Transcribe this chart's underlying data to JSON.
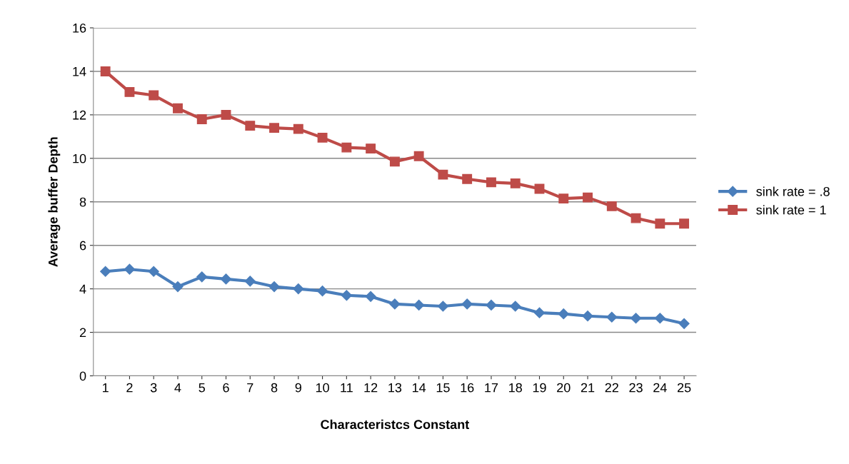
{
  "chart_data": {
    "type": "line",
    "xlabel": "Characteristcs Constant",
    "ylabel": "Average buffer Depth",
    "categories": [
      "1",
      "2",
      "3",
      "4",
      "5",
      "6",
      "7",
      "8",
      "9",
      "10",
      "11",
      "12",
      "13",
      "14",
      "15",
      "16",
      "17",
      "18",
      "19",
      "20",
      "21",
      "22",
      "23",
      "24",
      "25"
    ],
    "series": [
      {
        "name": "sink rate = .8",
        "color": "#4a7ebb",
        "marker": "diamond",
        "values": [
          4.8,
          4.9,
          4.8,
          4.1,
          4.55,
          4.45,
          4.35,
          4.1,
          4.0,
          3.9,
          3.7,
          3.65,
          3.3,
          3.25,
          3.2,
          3.3,
          3.25,
          3.2,
          2.9,
          2.85,
          2.75,
          2.7,
          2.65,
          2.65,
          2.4
        ]
      },
      {
        "name": "sink rate = 1",
        "color": "#be4b48",
        "marker": "square",
        "values": [
          14.0,
          13.05,
          12.9,
          12.3,
          11.8,
          12.0,
          11.5,
          11.4,
          11.35,
          10.95,
          10.5,
          10.45,
          9.85,
          10.1,
          9.25,
          9.05,
          8.9,
          8.85,
          8.6,
          8.15,
          8.2,
          7.8,
          7.25,
          7.0,
          7.0
        ]
      }
    ],
    "ylim": [
      0,
      16
    ],
    "yticks": [
      0,
      2,
      4,
      6,
      8,
      10,
      12,
      14,
      16
    ],
    "grid": "y",
    "legend": "right",
    "line_style": "solid"
  }
}
